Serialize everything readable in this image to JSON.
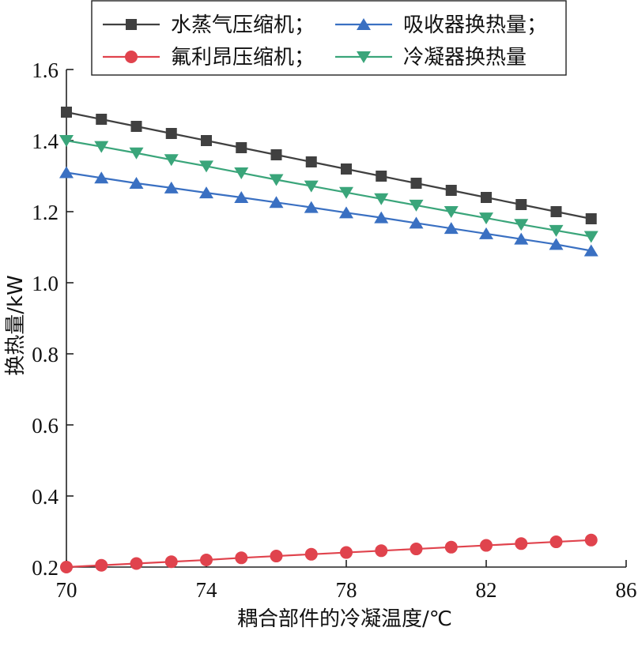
{
  "chart_data": {
    "type": "line",
    "title": "",
    "xlabel": "耦合部件的冷凝温度/℃",
    "ylabel": "换热量/kW",
    "xlim": [
      70,
      86
    ],
    "ylim": [
      0.2,
      1.6
    ],
    "xticks": [
      "70",
      "74",
      "78",
      "82",
      "86"
    ],
    "yticks": [
      "0.2",
      "0.4",
      "0.6",
      "0.8",
      "1.0",
      "1.2",
      "1.4",
      "1.6"
    ],
    "grid": false,
    "legend_position": "top",
    "x": [
      70,
      71,
      72,
      73,
      74,
      75,
      76,
      77,
      78,
      79,
      80,
      81,
      82,
      83,
      84,
      85
    ],
    "series": [
      {
        "name": "水蒸气压缩机；",
        "color": "#404040",
        "marker": "square",
        "values": [
          1.48,
          1.46,
          1.44,
          1.42,
          1.4,
          1.38,
          1.36,
          1.34,
          1.32,
          1.3,
          1.28,
          1.26,
          1.24,
          1.22,
          1.2,
          1.18
        ]
      },
      {
        "name": "吸收器换热量；",
        "color": "#3a70c2",
        "marker": "triangle-up",
        "values": [
          1.31,
          1.295,
          1.28,
          1.267,
          1.253,
          1.24,
          1.226,
          1.212,
          1.197,
          1.183,
          1.168,
          1.153,
          1.138,
          1.123,
          1.108,
          1.09
        ]
      },
      {
        "name": "氟利昂压缩机；",
        "color": "#e0434d",
        "marker": "circle",
        "values": [
          0.2,
          0.205,
          0.21,
          0.215,
          0.22,
          0.226,
          0.231,
          0.236,
          0.241,
          0.246,
          0.251,
          0.256,
          0.261,
          0.266,
          0.271,
          0.276
        ]
      },
      {
        "name": "冷凝器换热量",
        "color": "#3aa57a",
        "marker": "triangle-down",
        "values": [
          1.4,
          1.383,
          1.365,
          1.346,
          1.328,
          1.309,
          1.29,
          1.272,
          1.254,
          1.236,
          1.218,
          1.2,
          1.182,
          1.164,
          1.147,
          1.13
        ]
      }
    ]
  }
}
